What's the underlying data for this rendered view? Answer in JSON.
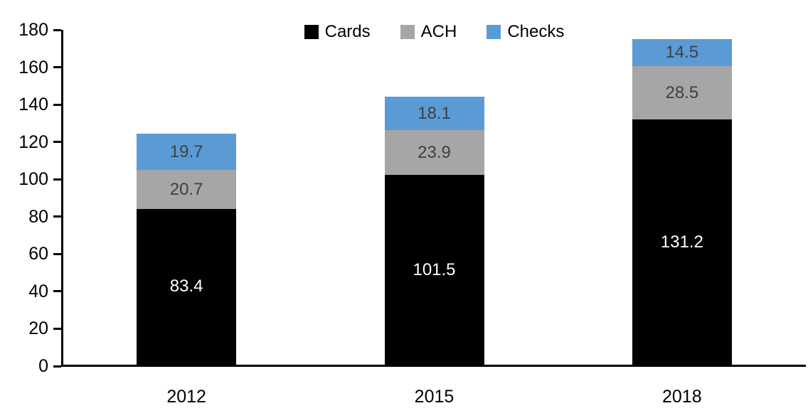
{
  "chart_data": {
    "type": "bar",
    "stacked": true,
    "title": "",
    "xlabel": "",
    "ylabel": "",
    "categories": [
      "2012",
      "2015",
      "2018"
    ],
    "series": [
      {
        "name": "Cards",
        "color": "#000000",
        "label_color": "#ffffff",
        "values": [
          83.4,
          101.5,
          131.2
        ]
      },
      {
        "name": "ACH",
        "color": "#a6a6a6",
        "label_color": "#404040",
        "values": [
          20.7,
          23.9,
          28.5
        ]
      },
      {
        "name": "Checks",
        "color": "#5b9bd5",
        "label_color": "#404040",
        "values": [
          19.7,
          18.1,
          14.5
        ]
      }
    ],
    "ylim": [
      0,
      180
    ],
    "ytick_step": 20,
    "ytick_labels": [
      "0",
      "20",
      "40",
      "60",
      "80",
      "100",
      "120",
      "140",
      "160",
      "180"
    ],
    "legend_position": "top-center",
    "legend_entries": [
      "Cards",
      "ACH",
      "Checks"
    ],
    "grid": false,
    "axis_color": "#000000"
  }
}
